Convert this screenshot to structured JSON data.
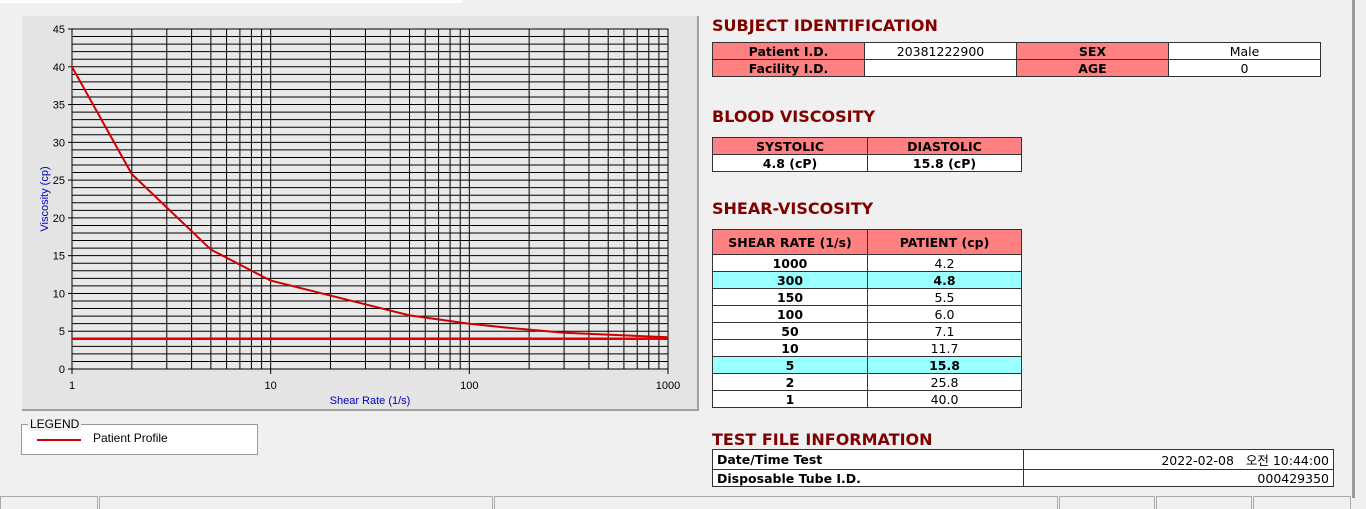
{
  "chart_data": {
    "type": "line",
    "xlabel": "Shear Rate (1/s)",
    "ylabel": "Viscosity (cp)",
    "xscale": "log",
    "xlim": [
      1,
      1000
    ],
    "ylim": [
      0,
      45
    ],
    "x_ticks": [
      "1",
      "10",
      "100",
      "1000"
    ],
    "y_ticks": [
      "0",
      "5",
      "10",
      "15",
      "20",
      "25",
      "30",
      "35",
      "40",
      "45"
    ],
    "grid": true,
    "series": [
      {
        "name": "Patient Profile",
        "color": "#d00000",
        "x": [
          1,
          2,
          5,
          10,
          50,
          100,
          150,
          300,
          1000
        ],
        "y": [
          40.0,
          25.8,
          15.8,
          11.7,
          7.1,
          6.0,
          5.5,
          4.8,
          4.2
        ]
      }
    ],
    "horizontal_line": {
      "y": 4.0,
      "color": "#e00000"
    }
  },
  "legend": {
    "title": "LEGEND",
    "items": [
      {
        "label": "Patient Profile",
        "color": "#d00000"
      }
    ]
  },
  "subject": {
    "title": "SUBJECT IDENTIFICATION",
    "patient_id_label": "Patient I.D.",
    "patient_id": "20381222900",
    "sex_label": "SEX",
    "sex": "Male",
    "facility_label": "Facility I.D.",
    "facility": "",
    "age_label": "AGE",
    "age": "0"
  },
  "blood": {
    "title": "BLOOD VISCOSITY",
    "systolic_label": "SYSTOLIC",
    "diastolic_label": "DIASTOLIC",
    "systolic": "4.8 (cP)",
    "diastolic": "15.8 (cP)"
  },
  "shear": {
    "title": "SHEAR-VISCOSITY",
    "col1": "SHEAR RATE (1/s)",
    "col2": "PATIENT (cp)",
    "rows": [
      {
        "rate": "1000",
        "v": "4.2"
      },
      {
        "rate": "300",
        "v": "4.8",
        "hl": true
      },
      {
        "rate": "150",
        "v": "5.5"
      },
      {
        "rate": "100",
        "v": "6.0"
      },
      {
        "rate": "50",
        "v": "7.1"
      },
      {
        "rate": "10",
        "v": "11.7"
      },
      {
        "rate": "5",
        "v": "15.8",
        "hl": true
      },
      {
        "rate": "2",
        "v": "25.8"
      },
      {
        "rate": "1",
        "v": "40.0"
      }
    ]
  },
  "testfile": {
    "title": "TEST FILE INFORMATION",
    "date_label": "Date/Time Test",
    "date": "2022-02-08   오전 10:44:00",
    "tube_label": "Disposable Tube I.D.",
    "tube": "000429350"
  },
  "colors": {
    "header": "#ff8080",
    "highlight": "#99ffff",
    "title": "#800000",
    "curve": "#d00000"
  }
}
